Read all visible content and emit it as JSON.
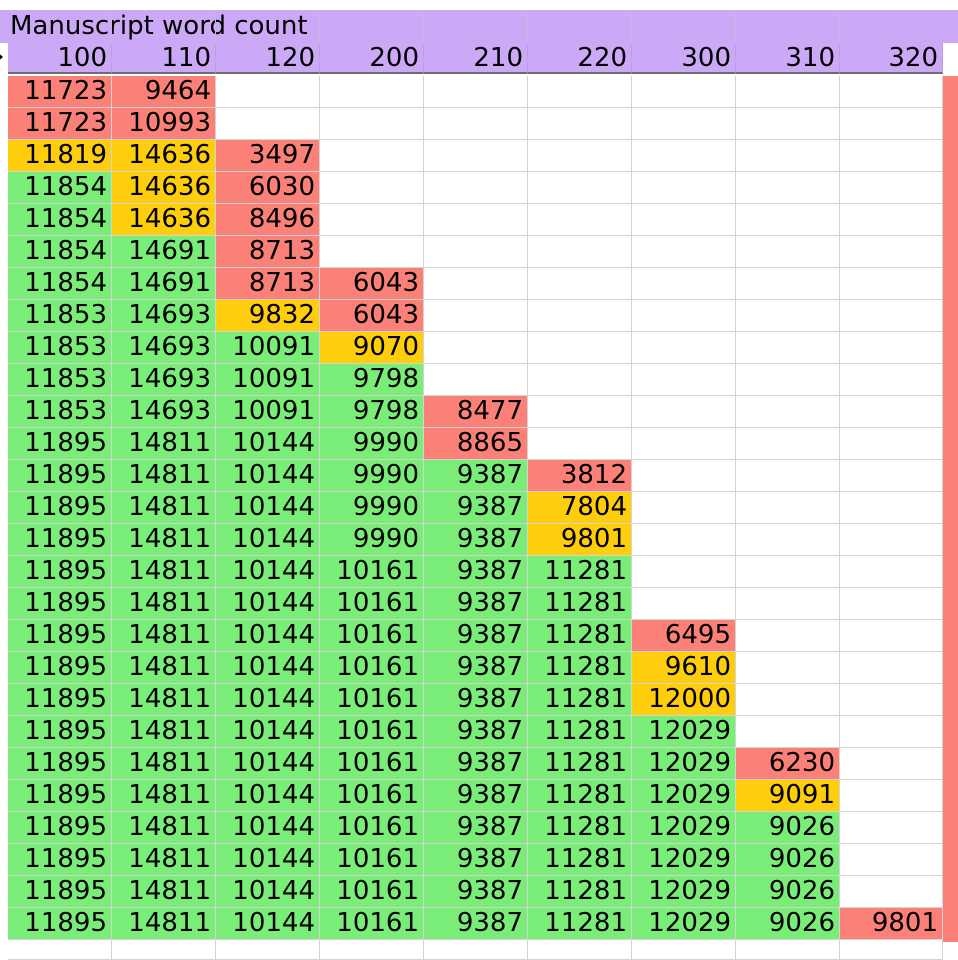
{
  "sheet": {
    "title": "Manuscript word count",
    "headers": [
      "100",
      "110",
      "120",
      "200",
      "210",
      "220",
      "300",
      "310",
      "320"
    ],
    "colors": {
      "red": "#fb8077",
      "yellow": "#fece0c",
      "green": "#7aed79",
      "header": "#cca9f7"
    },
    "rows": [
      [
        [
          "11723",
          "r"
        ],
        [
          "9464",
          "r"
        ]
      ],
      [
        [
          "11723",
          "r"
        ],
        [
          "10993",
          "r"
        ]
      ],
      [
        [
          "11819",
          "y"
        ],
        [
          "14636",
          "y"
        ],
        [
          "3497",
          "r"
        ]
      ],
      [
        [
          "11854",
          "g"
        ],
        [
          "14636",
          "y"
        ],
        [
          "6030",
          "r"
        ]
      ],
      [
        [
          "11854",
          "g"
        ],
        [
          "14636",
          "y"
        ],
        [
          "8496",
          "r"
        ]
      ],
      [
        [
          "11854",
          "g"
        ],
        [
          "14691",
          "g"
        ],
        [
          "8713",
          "r"
        ]
      ],
      [
        [
          "11854",
          "g"
        ],
        [
          "14691",
          "g"
        ],
        [
          "8713",
          "r"
        ],
        [
          "6043",
          "r"
        ]
      ],
      [
        [
          "11853",
          "g"
        ],
        [
          "14693",
          "g"
        ],
        [
          "9832",
          "y"
        ],
        [
          "6043",
          "r"
        ]
      ],
      [
        [
          "11853",
          "g"
        ],
        [
          "14693",
          "g"
        ],
        [
          "10091",
          "g"
        ],
        [
          "9070",
          "y"
        ]
      ],
      [
        [
          "11853",
          "g"
        ],
        [
          "14693",
          "g"
        ],
        [
          "10091",
          "g"
        ],
        [
          "9798",
          "g"
        ]
      ],
      [
        [
          "11853",
          "g"
        ],
        [
          "14693",
          "g"
        ],
        [
          "10091",
          "g"
        ],
        [
          "9798",
          "g"
        ],
        [
          "8477",
          "r"
        ]
      ],
      [
        [
          "11895",
          "g"
        ],
        [
          "14811",
          "g"
        ],
        [
          "10144",
          "g"
        ],
        [
          "9990",
          "g"
        ],
        [
          "8865",
          "r"
        ]
      ],
      [
        [
          "11895",
          "g"
        ],
        [
          "14811",
          "g"
        ],
        [
          "10144",
          "g"
        ],
        [
          "9990",
          "g"
        ],
        [
          "9387",
          "g"
        ],
        [
          "3812",
          "r"
        ]
      ],
      [
        [
          "11895",
          "g"
        ],
        [
          "14811",
          "g"
        ],
        [
          "10144",
          "g"
        ],
        [
          "9990",
          "g"
        ],
        [
          "9387",
          "g"
        ],
        [
          "7804",
          "y"
        ]
      ],
      [
        [
          "11895",
          "g"
        ],
        [
          "14811",
          "g"
        ],
        [
          "10144",
          "g"
        ],
        [
          "9990",
          "g"
        ],
        [
          "9387",
          "g"
        ],
        [
          "9801",
          "y"
        ]
      ],
      [
        [
          "11895",
          "g"
        ],
        [
          "14811",
          "g"
        ],
        [
          "10144",
          "g"
        ],
        [
          "10161",
          "g"
        ],
        [
          "9387",
          "g"
        ],
        [
          "11281",
          "g"
        ]
      ],
      [
        [
          "11895",
          "g"
        ],
        [
          "14811",
          "g"
        ],
        [
          "10144",
          "g"
        ],
        [
          "10161",
          "g"
        ],
        [
          "9387",
          "g"
        ],
        [
          "11281",
          "g"
        ]
      ],
      [
        [
          "11895",
          "g"
        ],
        [
          "14811",
          "g"
        ],
        [
          "10144",
          "g"
        ],
        [
          "10161",
          "g"
        ],
        [
          "9387",
          "g"
        ],
        [
          "11281",
          "g"
        ],
        [
          "6495",
          "r"
        ]
      ],
      [
        [
          "11895",
          "g"
        ],
        [
          "14811",
          "g"
        ],
        [
          "10144",
          "g"
        ],
        [
          "10161",
          "g"
        ],
        [
          "9387",
          "g"
        ],
        [
          "11281",
          "g"
        ],
        [
          "9610",
          "y"
        ]
      ],
      [
        [
          "11895",
          "g"
        ],
        [
          "14811",
          "g"
        ],
        [
          "10144",
          "g"
        ],
        [
          "10161",
          "g"
        ],
        [
          "9387",
          "g"
        ],
        [
          "11281",
          "g"
        ],
        [
          "12000",
          "y"
        ]
      ],
      [
        [
          "11895",
          "g"
        ],
        [
          "14811",
          "g"
        ],
        [
          "10144",
          "g"
        ],
        [
          "10161",
          "g"
        ],
        [
          "9387",
          "g"
        ],
        [
          "11281",
          "g"
        ],
        [
          "12029",
          "g"
        ]
      ],
      [
        [
          "11895",
          "g"
        ],
        [
          "14811",
          "g"
        ],
        [
          "10144",
          "g"
        ],
        [
          "10161",
          "g"
        ],
        [
          "9387",
          "g"
        ],
        [
          "11281",
          "g"
        ],
        [
          "12029",
          "g"
        ],
        [
          "6230",
          "r"
        ]
      ],
      [
        [
          "11895",
          "g"
        ],
        [
          "14811",
          "g"
        ],
        [
          "10144",
          "g"
        ],
        [
          "10161",
          "g"
        ],
        [
          "9387",
          "g"
        ],
        [
          "11281",
          "g"
        ],
        [
          "12029",
          "g"
        ],
        [
          "9091",
          "y"
        ]
      ],
      [
        [
          "11895",
          "g"
        ],
        [
          "14811",
          "g"
        ],
        [
          "10144",
          "g"
        ],
        [
          "10161",
          "g"
        ],
        [
          "9387",
          "g"
        ],
        [
          "11281",
          "g"
        ],
        [
          "12029",
          "g"
        ],
        [
          "9026",
          "g"
        ]
      ],
      [
        [
          "11895",
          "g"
        ],
        [
          "14811",
          "g"
        ],
        [
          "10144",
          "g"
        ],
        [
          "10161",
          "g"
        ],
        [
          "9387",
          "g"
        ],
        [
          "11281",
          "g"
        ],
        [
          "12029",
          "g"
        ],
        [
          "9026",
          "g"
        ]
      ],
      [
        [
          "11895",
          "g"
        ],
        [
          "14811",
          "g"
        ],
        [
          "10144",
          "g"
        ],
        [
          "10161",
          "g"
        ],
        [
          "9387",
          "g"
        ],
        [
          "11281",
          "g"
        ],
        [
          "12029",
          "g"
        ],
        [
          "9026",
          "g"
        ]
      ],
      [
        [
          "11895",
          "g"
        ],
        [
          "14811",
          "g"
        ],
        [
          "10144",
          "g"
        ],
        [
          "10161",
          "g"
        ],
        [
          "9387",
          "g"
        ],
        [
          "11281",
          "g"
        ],
        [
          "12029",
          "g"
        ],
        [
          "9026",
          "g"
        ],
        [
          "9801",
          "r"
        ]
      ]
    ]
  }
}
